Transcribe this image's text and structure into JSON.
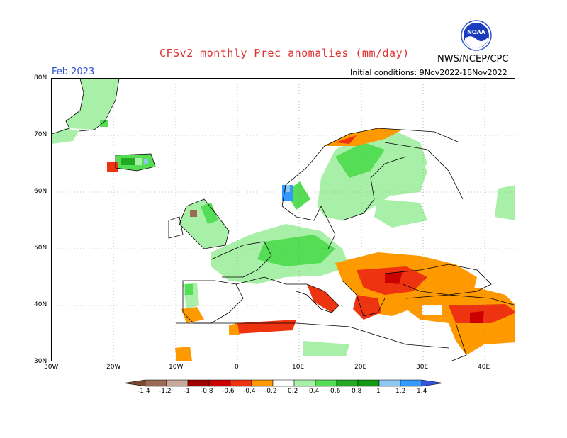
{
  "header": {
    "title": "CFSv2 monthly Prec anomalies (mm/day)",
    "agency": "NWS/NCEP/CPC",
    "logo_text": "NOAA",
    "month": "Feb 2023",
    "initial_conditions": "Initial conditions: 9Nov2022-18Nov2022"
  },
  "axes": {
    "lat_labels": [
      "80N",
      "70N",
      "60N",
      "50N",
      "40N",
      "30N"
    ],
    "lon_labels": [
      "30W",
      "20W",
      "10W",
      "0",
      "10E",
      "20E",
      "30E",
      "40E"
    ],
    "lon_range": [
      -30,
      45
    ],
    "lat_range": [
      30,
      80
    ],
    "grid": "dotted"
  },
  "legend": {
    "labels": [
      "-1.4",
      "-1.2",
      "-1",
      "-0.8",
      "-0.6",
      "-0.4",
      "-0.2",
      "0.2",
      "0.4",
      "0.6",
      "0.8",
      "1",
      "1.2",
      "1.4"
    ],
    "colors": [
      "#7b4a2e",
      "#9a6a55",
      "#c8a898",
      "#a00000",
      "#cc0000",
      "#ee3311",
      "#ff9900",
      "#ffffff",
      "#a8f0a8",
      "#55dd55",
      "#22aa22",
      "#119911",
      "#8cc8f0",
      "#3399ff",
      "#3355dd"
    ]
  },
  "colors": {
    "dry_light": "#ff9900",
    "dry_mid": "#ee3311",
    "dry_strong": "#cc0000",
    "wet_light": "#a8f0a8",
    "wet_mid": "#55dd55",
    "wet_strong": "#22aa22",
    "wet_blue": "#3399ff"
  }
}
